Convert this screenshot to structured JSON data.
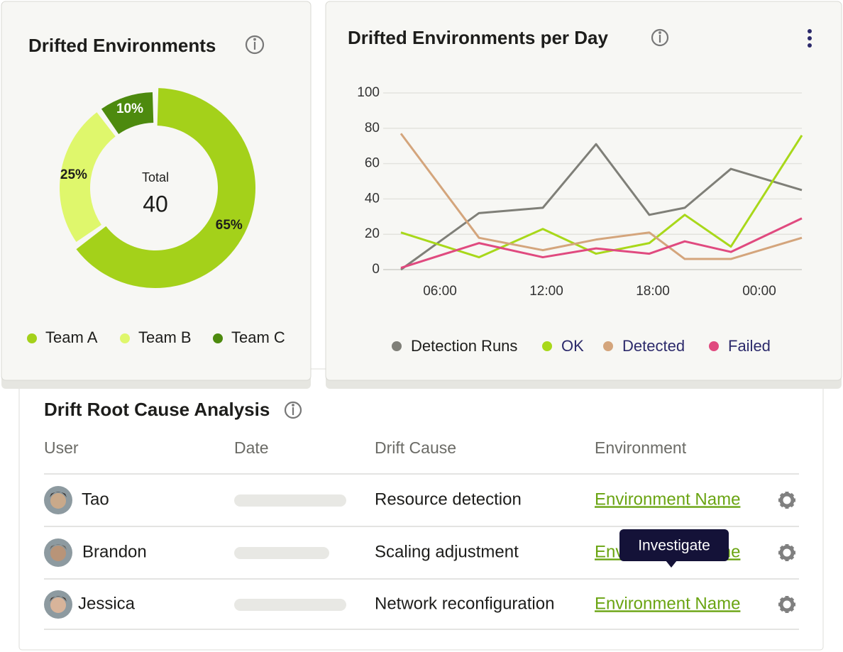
{
  "chart_data": [
    {
      "type": "donut",
      "title": "Drifted Environments",
      "center_label": "Total",
      "center_value": 40,
      "categories": [
        "Team A",
        "Team B",
        "Team C"
      ],
      "values": [
        65,
        25,
        10
      ],
      "value_labels": [
        "65%",
        "25%",
        "10%"
      ],
      "colors": [
        "#a4d11a",
        "#dff76c",
        "#4d8a0e"
      ],
      "legend": "bottom"
    },
    {
      "type": "line",
      "title": "Drifted Environments per Day",
      "x": [
        3.8,
        8.2,
        11.8,
        14.8,
        17.8,
        19.8,
        22.4,
        26.4
      ],
      "xlim": [
        2.8,
        26.4
      ],
      "xticks": [
        {
          "value": 6,
          "label": "06:00"
        },
        {
          "value": 12,
          "label": "12:00"
        },
        {
          "value": 18,
          "label": "18:00"
        },
        {
          "value": 24,
          "label": "00:00"
        }
      ],
      "ylim": [
        0,
        100
      ],
      "yticks": [
        0,
        20,
        40,
        60,
        80,
        100
      ],
      "grid": true,
      "legend": "bottom",
      "series": [
        {
          "name": "Detection Runs",
          "color": "#7f7f78",
          "values": [
            0,
            32,
            35,
            71,
            31,
            35,
            57,
            45
          ]
        },
        {
          "name": "OK",
          "color": "#a8d81a",
          "values": [
            21,
            7,
            23,
            9,
            15,
            31,
            13,
            76
          ]
        },
        {
          "name": "Detected",
          "color": "#d4a57c",
          "values": [
            77,
            18,
            11,
            17,
            21,
            6,
            6,
            18
          ]
        },
        {
          "name": "Failed",
          "color": "#e04a7f",
          "values": [
            1,
            15,
            7,
            12,
            9,
            16,
            10,
            29
          ]
        }
      ]
    }
  ],
  "table": {
    "title": "Drift Root Cause Analysis",
    "columns": [
      "User",
      "Date",
      "Drift Cause",
      "Environment"
    ],
    "rows": [
      {
        "user": "Tao",
        "cause": "Resource detection",
        "environment": "Environment Name"
      },
      {
        "user": "Brandon",
        "cause": "Scaling adjustment",
        "environment": "Environment Name"
      },
      {
        "user": "Jessica",
        "cause": "Network reconfiguration",
        "environment": "Environment Name"
      }
    ]
  },
  "tooltip": "Investigate"
}
